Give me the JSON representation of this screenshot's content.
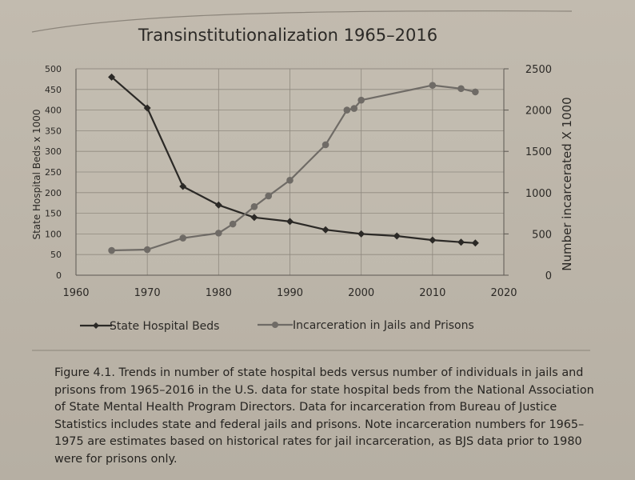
{
  "chart_data": {
    "type": "line",
    "title": "Transinstitutionalization 1965–2016",
    "ylabel_left": "State Hospital Beds x 1000",
    "ylabel_right": "Number incarcerated X 1000",
    "xlabel": "",
    "xlim": [
      1960,
      2020
    ],
    "ylim_left": [
      0,
      500
    ],
    "ylim_right": [
      0,
      2500
    ],
    "x_ticks": [
      "1960",
      "1970",
      "1980",
      "1990",
      "2000",
      "2010",
      "2020"
    ],
    "y_ticks_left": [
      "0",
      "50",
      "100",
      "150",
      "200",
      "250",
      "300",
      "350",
      "400",
      "450",
      "500"
    ],
    "y_ticks_right": [
      "0",
      "500",
      "1000",
      "1500",
      "2000",
      "2500"
    ],
    "grid": true,
    "legend_position": "bottom",
    "series": [
      {
        "name": "State Hospital Beds",
        "axis": "left",
        "color": "#2b2926",
        "marker": "diamond",
        "x": [
          1965,
          1970,
          1975,
          1980,
          1985,
          1990,
          1995,
          2000,
          2005,
          2010,
          2014,
          2016
        ],
        "values": [
          480,
          405,
          215,
          170,
          140,
          130,
          110,
          100,
          95,
          85,
          80,
          78
        ]
      },
      {
        "name": "Incarceration in Jails and Prisons",
        "axis": "right",
        "color": "#6f6b66",
        "marker": "circle",
        "x": [
          1965,
          1970,
          1975,
          1980,
          1982,
          1985,
          1987,
          1990,
          1995,
          1998,
          1999,
          2000,
          2010,
          2014,
          2016
        ],
        "values": [
          300,
          310,
          450,
          510,
          620,
          830,
          960,
          1150,
          1580,
          2000,
          2020,
          2120,
          2300,
          2260,
          2220
        ]
      }
    ]
  },
  "caption": {
    "label": "Figure 4.1.",
    "text": " Trends in number of state hospital beds versus number of individuals in jails and prisons from 1965–2016 in the U.S. data for state hospital beds from the National Association of State Mental Health Program Directors. Data for incarceration from Bureau of Justice Statistics includes state and federal jails and prisons. Note incarceration numbers for 1965–1975 are estimates based on historical rates for jail incarceration, as BJS data prior to 1980 were for prisons only."
  }
}
